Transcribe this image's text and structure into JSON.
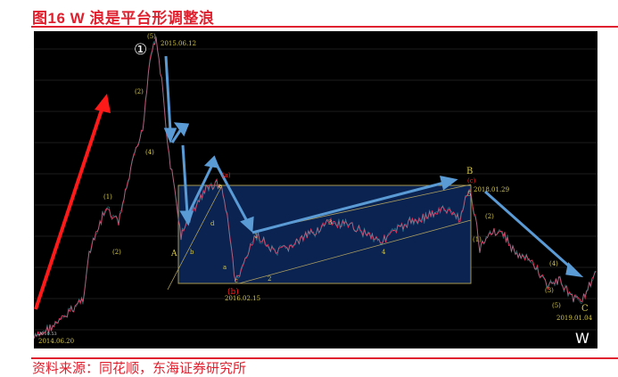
{
  "figure": {
    "title": "图16   W 浪是平台形调整浪",
    "source": "资料来源：同花顺，东海证券研究所"
  },
  "chart_data": {
    "type": "line",
    "description_labels": {
      "circle_one": "①",
      "corner": "W"
    },
    "dates": [
      "2014.06.20",
      "2015.06.12",
      "2016.02.15",
      "2018.01.29",
      "2019.01.04"
    ],
    "start_value_label": "2010.53",
    "wave_labels": [
      "(5)",
      "(4)",
      "(3)",
      "(2)",
      "(1)",
      "A",
      "B",
      "C",
      "(a)",
      "(b)",
      "(c)",
      "a",
      "b",
      "c",
      "d",
      "e",
      "1",
      "2",
      "3",
      "4",
      "5"
    ],
    "colors": {
      "background": "#000000",
      "box": "#0a2350",
      "arrow_blue": "#5b9bd5",
      "arrow_red": "#ff1a1a",
      "label": "#d6c84a",
      "red_label": "#ff2020",
      "candle_up": "#e0305a",
      "candle_down": "#40c0c0"
    }
  }
}
